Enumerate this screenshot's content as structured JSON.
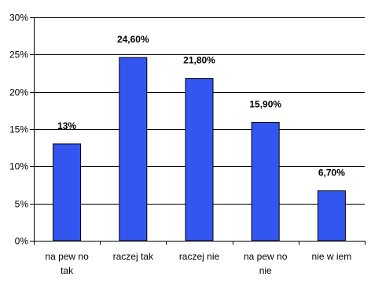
{
  "chart_data": {
    "type": "bar",
    "categories": [
      [
        "na pew no",
        "tak"
      ],
      [
        "raczej tak"
      ],
      [
        "raczej nie"
      ],
      [
        "na pew no",
        "nie"
      ],
      [
        "nie w iem"
      ]
    ],
    "values": [
      13.0,
      24.6,
      21.8,
      15.9,
      6.7
    ],
    "data_labels": [
      "13%",
      "24,60%",
      "21,80%",
      "15,90%",
      "6,70%"
    ],
    "ylim": [
      0,
      30
    ],
    "yticks": [
      0,
      5,
      10,
      15,
      20,
      25,
      30
    ],
    "ytick_labels": [
      "0%",
      "5%",
      "10%",
      "15%",
      "20%",
      "25%",
      "30%"
    ],
    "grid": true,
    "colors": {
      "bar_fill": "#3356F0",
      "bar_stroke": "#000000",
      "grid": "#000000",
      "axis": "#000000"
    }
  }
}
